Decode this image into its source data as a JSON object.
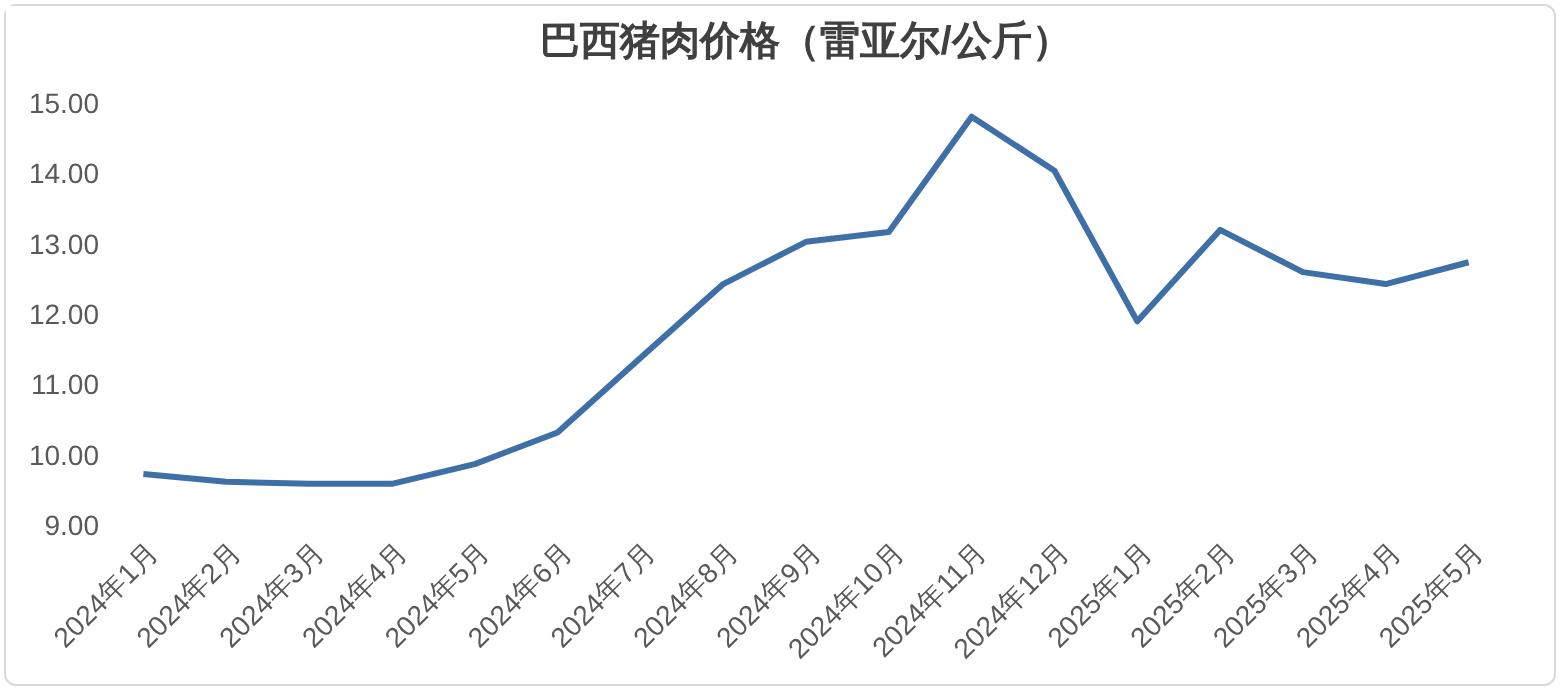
{
  "chart_data": {
    "type": "line",
    "title": "巴西猪肉价格（雷亚尔/公斤）",
    "categories": [
      "2024年1月",
      "2024年2月",
      "2024年3月",
      "2024年4月",
      "2024年5月",
      "2024年6月",
      "2024年7月",
      "2024年8月",
      "2024年9月",
      "2024年10月",
      "2024年11月",
      "2024年12月",
      "2025年1月",
      "2025年2月",
      "2025年3月",
      "2025年4月",
      "2025年5月"
    ],
    "series": [
      {
        "color": "#3e6fa6",
        "values": [
          9.74,
          9.63,
          9.6,
          9.6,
          9.88,
          10.33,
          11.39,
          12.44,
          13.04,
          13.18,
          14.82,
          14.05,
          11.91,
          13.21,
          12.61,
          12.44,
          12.75
        ]
      }
    ],
    "ylim": [
      9,
      15
    ],
    "yticks": [
      {
        "value": 9,
        "label": "9.00"
      },
      {
        "value": 10,
        "label": "10.00"
      },
      {
        "value": 11,
        "label": "11.00"
      },
      {
        "value": 12,
        "label": "12.00"
      },
      {
        "value": 13,
        "label": "13.00"
      },
      {
        "value": 14,
        "label": "14.00"
      },
      {
        "value": 15,
        "label": "15.00"
      }
    ],
    "grid": false,
    "marker": "none",
    "line_style": "solid"
  }
}
